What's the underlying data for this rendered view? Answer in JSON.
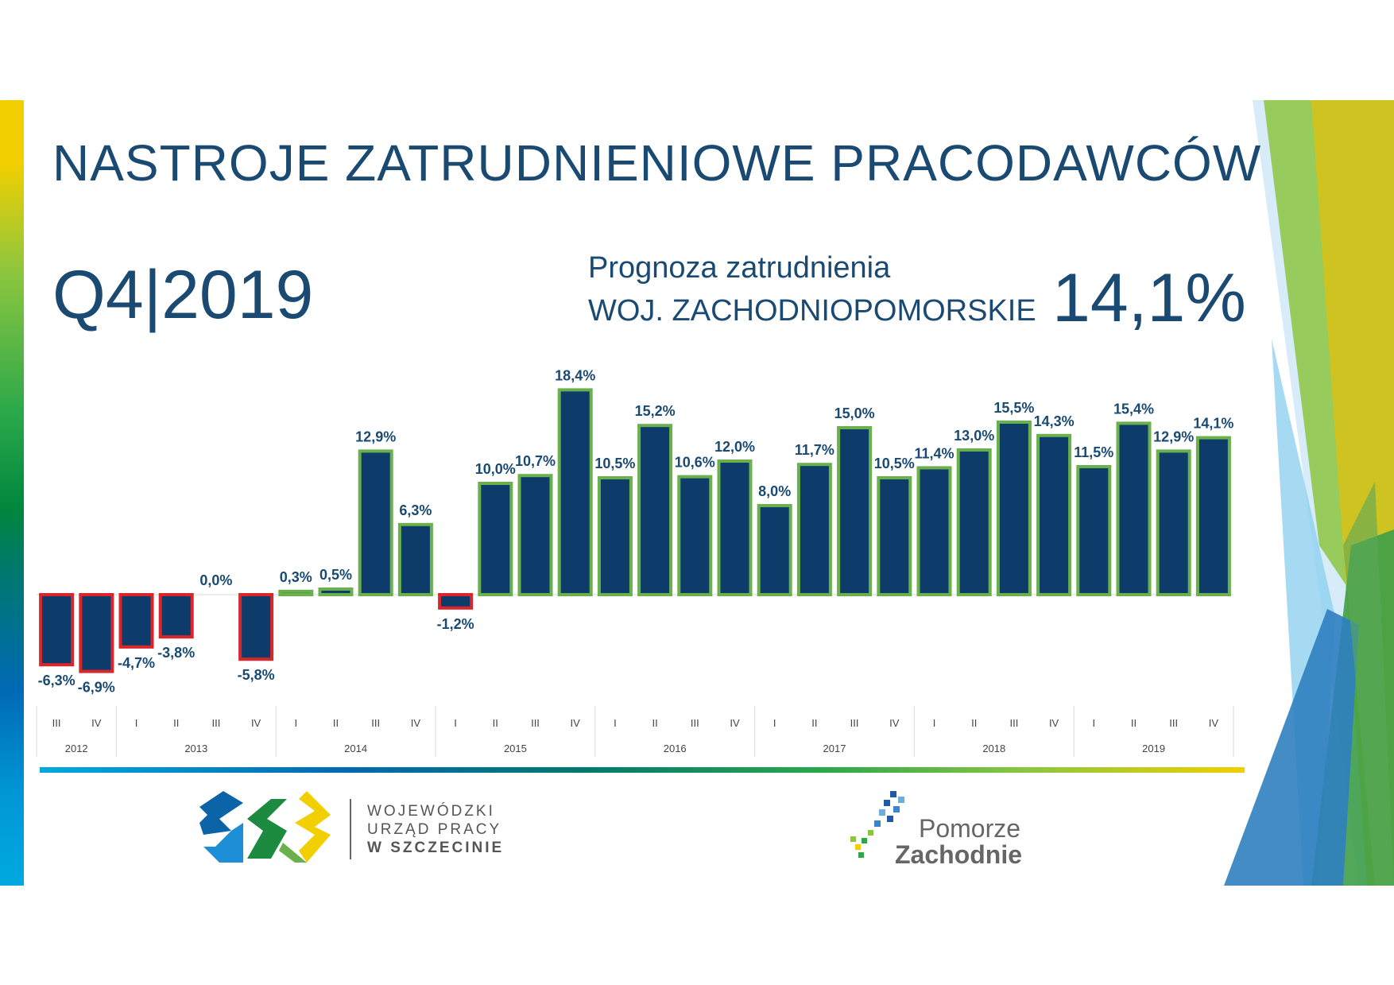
{
  "header": {
    "title": "NASTROJE ZATRUDNIENIOWE PRACODAWCÓW",
    "quarter": "Q4|2019",
    "forecast_label": "Prognoza zatrudnienia",
    "region": "WOJ. ZACHODNIOPOMORSKIE",
    "forecast_value": "14,1%"
  },
  "colors": {
    "primary": "#1a4a72",
    "bar_fill": "#0d3c6b",
    "positive_border": "#6ab04c",
    "negative_border": "#d9262b"
  },
  "chart_data": {
    "type": "bar",
    "categories": [
      "III",
      "IV",
      "I",
      "II",
      "III",
      "IV",
      "I",
      "II",
      "III",
      "IV",
      "I",
      "II",
      "III",
      "IV",
      "I",
      "II",
      "III",
      "IV",
      "I",
      "II",
      "III",
      "IV",
      "I",
      "II",
      "III",
      "IV",
      "I",
      "II",
      "III",
      "IV"
    ],
    "year_groups": [
      {
        "label": "2012",
        "count": 2
      },
      {
        "label": "2013",
        "count": 4
      },
      {
        "label": "2014",
        "count": 4
      },
      {
        "label": "2015",
        "count": 4
      },
      {
        "label": "2016",
        "count": 4
      },
      {
        "label": "2017",
        "count": 4
      },
      {
        "label": "2018",
        "count": 4
      },
      {
        "label": "2019",
        "count": 4
      }
    ],
    "values": [
      -6.3,
      -6.9,
      -4.7,
      -3.8,
      0.0,
      -5.8,
      0.3,
      0.5,
      12.9,
      6.3,
      -1.2,
      10.0,
      10.7,
      18.4,
      10.5,
      15.2,
      10.6,
      12.0,
      8.0,
      11.7,
      15.0,
      10.5,
      11.4,
      13.0,
      15.5,
      14.3,
      11.5,
      15.4,
      12.9,
      14.1
    ],
    "labels": [
      "-6,3%",
      "-6,9%",
      "-4,7%",
      "-3,8%",
      "0,0%",
      "-5,8%",
      "0,3%",
      "0,5%",
      "12,9%",
      "6,3%",
      "-1,2%",
      "10,0%",
      "10,7%",
      "18,4%",
      "10,5%",
      "15,2%",
      "10,6%",
      "12,0%",
      "8,0%",
      "11,7%",
      "15,0%",
      "10,5%",
      "11,4%",
      "13,0%",
      "15,5%",
      "14,3%",
      "11,5%",
      "15,4%",
      "12,9%",
      "14,1%"
    ],
    "ylim": [
      -8,
      19
    ],
    "legend": "none",
    "grid": false
  },
  "logos": {
    "wup": [
      "WOJEWÓDZKI",
      "URZĄD PRACY",
      "W  SZCZECINIE"
    ],
    "pz_line1": "Pomorze",
    "pz_line2": "Zachodnie"
  }
}
